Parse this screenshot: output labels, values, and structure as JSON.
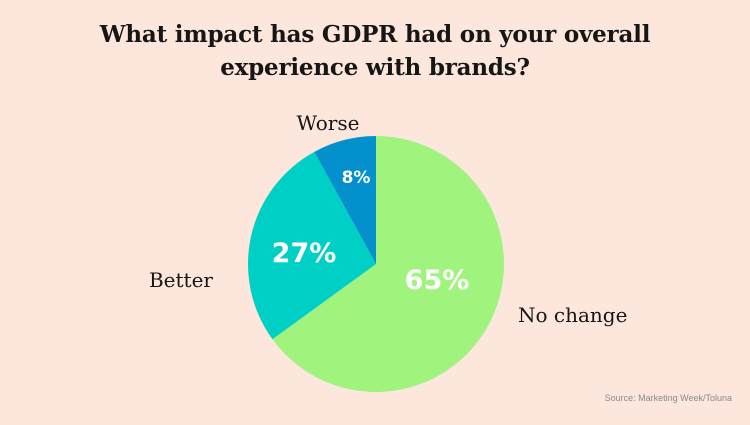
{
  "title_lines": [
    "What impact has GDPR had on your overall",
    "experience with brands?"
  ],
  "source": "Source: Marketing Week/Toluna",
  "chart_data": {
    "type": "pie",
    "title": "What impact has GDPR had on your overall experience with brands?",
    "start_angle_deg": 0,
    "direction": "clockwise",
    "slices": [
      {
        "name": "No change",
        "value": 65,
        "label": "65%",
        "color": "#a0f47e"
      },
      {
        "name": "Better",
        "value": 27,
        "label": "27%",
        "color": "#00cfc6"
      },
      {
        "name": "Worse",
        "value": 8,
        "label": "8%",
        "color": "#0390cc"
      }
    ]
  }
}
